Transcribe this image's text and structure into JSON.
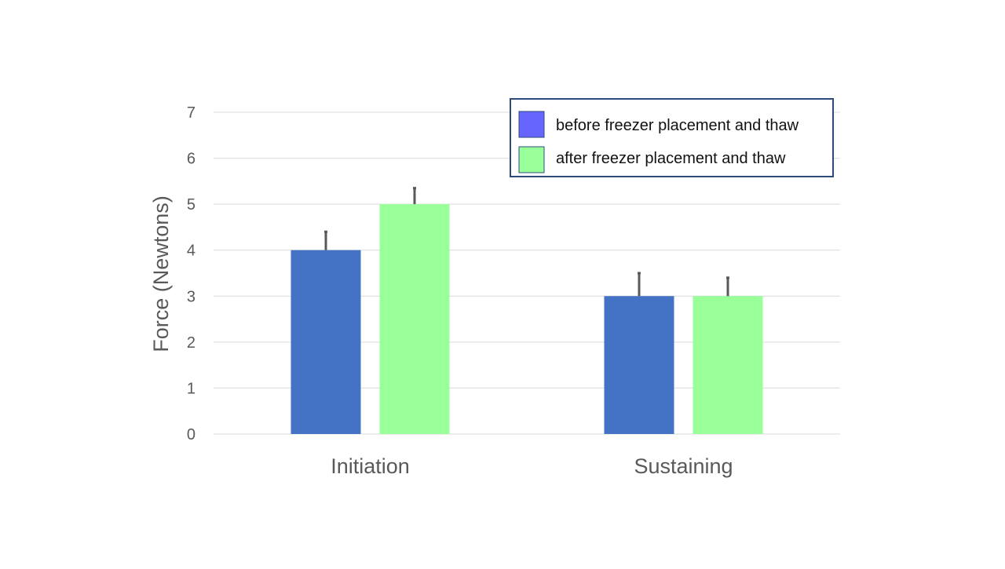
{
  "chart_data": {
    "type": "bar",
    "title": "",
    "xlabel": "",
    "ylabel": "Force (Newtons)",
    "categories": [
      "Initiation",
      "Sustaining"
    ],
    "series": [
      {
        "name": "before freezer placement and thaw",
        "values": [
          4,
          3
        ],
        "error_plus": [
          0.4,
          0.5
        ],
        "color": "#4472C4",
        "legend_swatch_color": "#6666FF"
      },
      {
        "name": "after freezer placement and thaw",
        "values": [
          5,
          3
        ],
        "error_plus": [
          0.35,
          0.4
        ],
        "color": "#99FF99",
        "legend_swatch_color": "#99FF99"
      }
    ],
    "ylim": [
      0,
      7
    ],
    "yticks": [
      0,
      1,
      2,
      3,
      4,
      5,
      6,
      7
    ],
    "grid": true,
    "legend_position": "top-right",
    "colors": {
      "gridline": "#D9D9D9",
      "axis_text": "#595959",
      "error_bar": "#595959",
      "legend_border": "#2F4B7C"
    }
  }
}
